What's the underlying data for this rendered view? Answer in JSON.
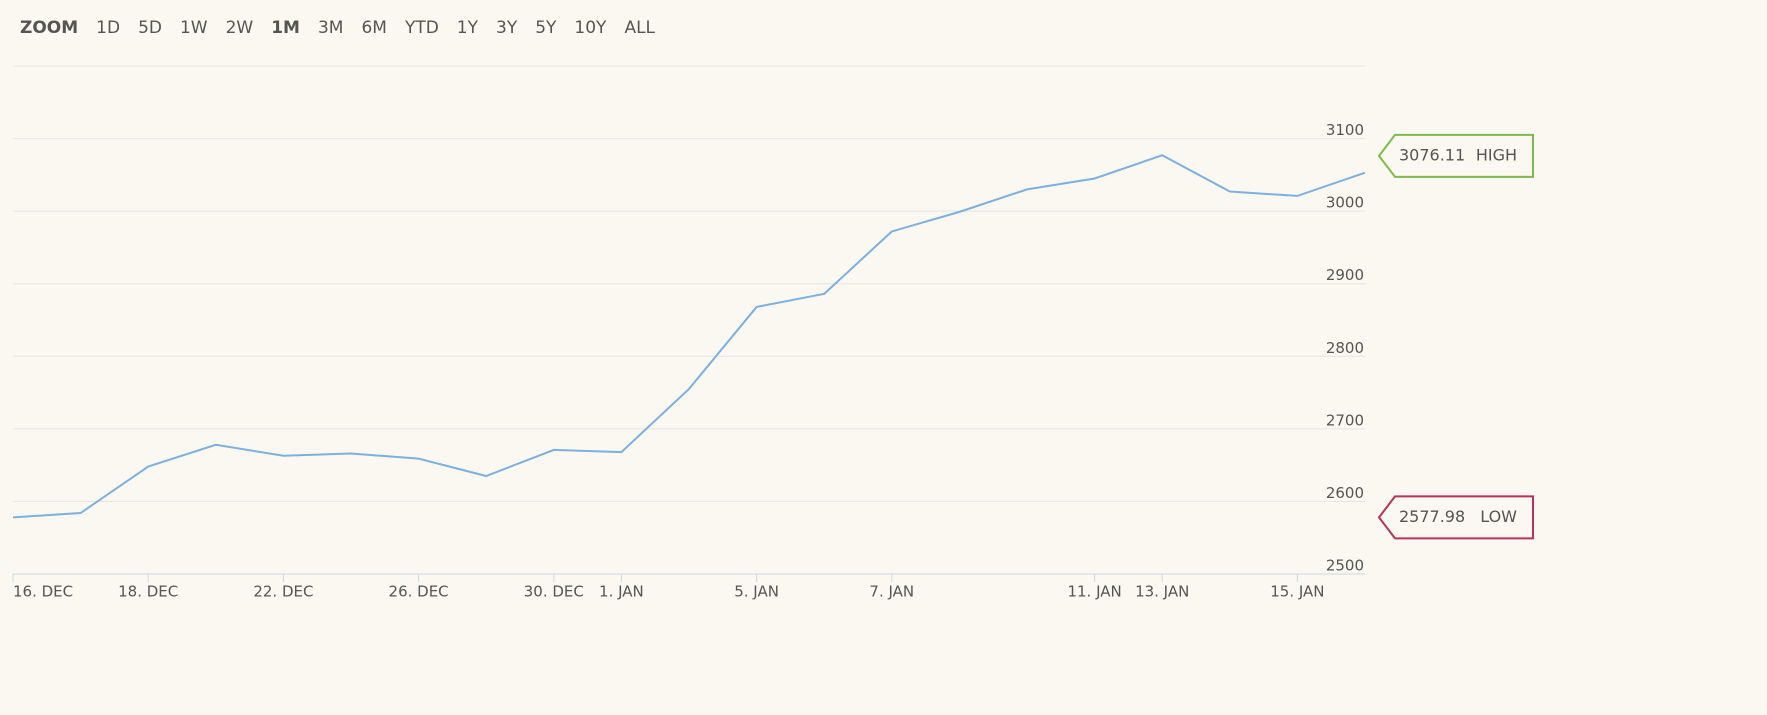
{
  "range_selector": {
    "label": "ZOOM",
    "options": [
      "1D",
      "5D",
      "1W",
      "2W",
      "1M",
      "3M",
      "6M",
      "YTD",
      "1Y",
      "3Y",
      "5Y",
      "10Y",
      "ALL"
    ],
    "active_index": 4
  },
  "chart_data": {
    "type": "line",
    "categories": [
      "16. DEC",
      null,
      "18. DEC",
      null,
      "22. DEC",
      null,
      "26. DEC",
      null,
      "30. DEC",
      "1. JAN",
      null,
      "5. JAN",
      null,
      "7. JAN",
      null,
      null,
      "11. JAN",
      "13. JAN",
      null,
      "15. JAN",
      null
    ],
    "series": [
      {
        "color": "#7cb0df",
        "values": [
          2578,
          2584,
          2648,
          2678,
          2663,
          2666,
          2659,
          2635,
          2671,
          2668,
          2755,
          2868,
          2886,
          2972,
          2999,
          3030,
          3045,
          3077,
          3027,
          3021,
          3053
        ]
      }
    ],
    "ylim": [
      2500,
      3200
    ],
    "yticks": [
      2500,
      2600,
      2700,
      2800,
      2900,
      3000,
      3100
    ],
    "grid": true,
    "high": {
      "value": 3076.11,
      "label": "HIGH",
      "color": "#7dbb4e"
    },
    "low": {
      "value": 2577.98,
      "label": "LOW",
      "color": "#b8325a"
    }
  }
}
